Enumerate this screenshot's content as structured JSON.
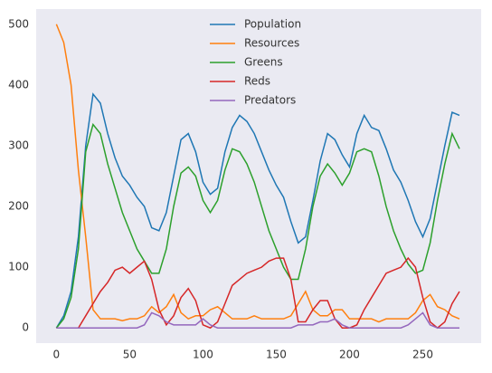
{
  "chart_data": {
    "type": "line",
    "x": [
      0,
      5,
      10,
      15,
      20,
      25,
      30,
      35,
      40,
      45,
      50,
      55,
      60,
      65,
      70,
      75,
      80,
      85,
      90,
      95,
      100,
      105,
      110,
      115,
      120,
      125,
      130,
      135,
      140,
      145,
      150,
      155,
      160,
      165,
      170,
      175,
      180,
      185,
      190,
      195,
      200,
      205,
      210,
      215,
      220,
      225,
      230,
      235,
      240,
      245,
      250,
      255,
      260,
      265,
      270,
      275
    ],
    "series": [
      {
        "name": "Population",
        "color": "#1f77b4",
        "values": [
          0,
          20,
          60,
          150,
          300,
          385,
          370,
          320,
          280,
          250,
          235,
          215,
          200,
          165,
          160,
          190,
          250,
          310,
          320,
          290,
          240,
          220,
          230,
          290,
          330,
          350,
          340,
          320,
          290,
          260,
          235,
          215,
          175,
          140,
          150,
          210,
          275,
          320,
          310,
          285,
          265,
          320,
          350,
          330,
          325,
          295,
          260,
          240,
          210,
          175,
          150,
          180,
          240,
          300,
          355,
          350
        ]
      },
      {
        "name": "Resources",
        "color": "#ff7f0e",
        "values": [
          500,
          470,
          400,
          260,
          150,
          30,
          15,
          15,
          15,
          12,
          15,
          15,
          20,
          35,
          25,
          35,
          55,
          25,
          15,
          20,
          20,
          30,
          35,
          25,
          15,
          15,
          15,
          20,
          15,
          15,
          15,
          15,
          20,
          40,
          60,
          30,
          20,
          20,
          30,
          30,
          15,
          15,
          15,
          15,
          10,
          15,
          15,
          15,
          15,
          25,
          45,
          55,
          35,
          30,
          20,
          15
        ]
      },
      {
        "name": "Greens",
        "color": "#2ca02c",
        "values": [
          0,
          15,
          50,
          130,
          290,
          335,
          320,
          270,
          230,
          190,
          160,
          130,
          110,
          90,
          90,
          130,
          200,
          255,
          265,
          250,
          210,
          190,
          210,
          260,
          295,
          290,
          270,
          240,
          200,
          160,
          130,
          100,
          80,
          80,
          130,
          200,
          250,
          270,
          255,
          235,
          255,
          290,
          295,
          290,
          250,
          200,
          160,
          130,
          105,
          90,
          95,
          140,
          210,
          270,
          320,
          295
        ]
      },
      {
        "name": "Reds",
        "color": "#d62728",
        "values": [
          0,
          0,
          0,
          0,
          20,
          40,
          60,
          75,
          95,
          100,
          90,
          100,
          110,
          80,
          30,
          5,
          20,
          50,
          65,
          45,
          5,
          0,
          10,
          40,
          70,
          80,
          90,
          95,
          100,
          110,
          115,
          115,
          80,
          10,
          10,
          30,
          45,
          45,
          15,
          0,
          0,
          5,
          30,
          50,
          70,
          90,
          95,
          100,
          115,
          100,
          50,
          10,
          0,
          10,
          40,
          60
        ]
      },
      {
        "name": "Predators",
        "color": "#9467bd",
        "values": [
          0,
          0,
          0,
          0,
          0,
          0,
          0,
          0,
          0,
          0,
          0,
          0,
          5,
          25,
          20,
          10,
          5,
          5,
          5,
          5,
          15,
          5,
          0,
          0,
          0,
          0,
          0,
          0,
          0,
          0,
          0,
          0,
          0,
          5,
          5,
          5,
          10,
          10,
          15,
          5,
          0,
          0,
          0,
          0,
          0,
          0,
          0,
          0,
          5,
          15,
          25,
          5,
          0,
          0,
          0,
          0
        ]
      }
    ],
    "xlim": [
      -13.8,
      289.8
    ],
    "ylim": [
      -25,
      525
    ],
    "xticks": [
      0,
      50,
      100,
      150,
      200,
      250
    ],
    "yticks": [
      0,
      100,
      200,
      300,
      400,
      500
    ],
    "grid": false,
    "legend": "upper center"
  }
}
